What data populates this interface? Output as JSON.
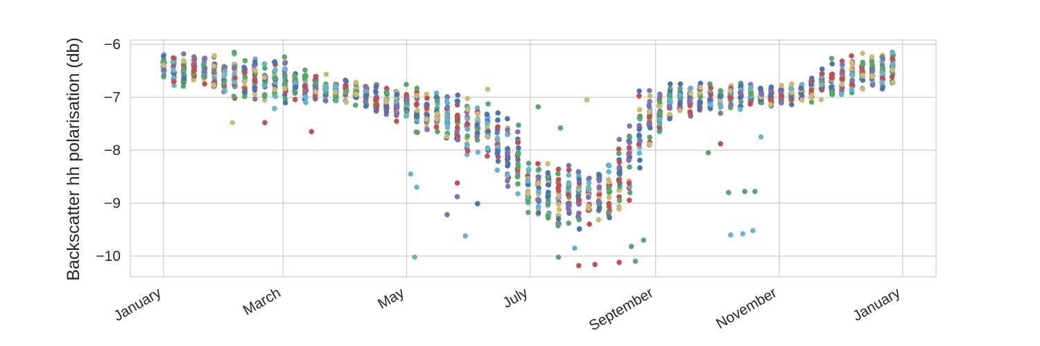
{
  "chart_data": {
    "type": "scatter",
    "title": "",
    "xlabel": "",
    "ylabel": "Backscatter hh polarisation (db)",
    "ylim": [
      -10.4,
      -5.95
    ],
    "grid": true,
    "legend": "none",
    "x_ticks": [
      {
        "label": "January",
        "day": 1
      },
      {
        "label": "March",
        "day": 60
      },
      {
        "label": "May",
        "day": 121
      },
      {
        "label": "July",
        "day": 182
      },
      {
        "label": "September",
        "day": 244
      },
      {
        "label": "November",
        "day": 305
      },
      {
        "label": "January",
        "day": 366
      }
    ],
    "y_ticks": [
      {
        "label": "−6",
        "value": -6
      },
      {
        "label": "−7",
        "value": -7
      },
      {
        "label": "−8",
        "value": -8
      },
      {
        "label": "−9",
        "value": -9
      },
      {
        "label": "−10",
        "value": -10
      }
    ],
    "series_colors": [
      "#4c72b0",
      "#55a868",
      "#c44e52",
      "#8172b2",
      "#ccb974",
      "#64b5cd"
    ],
    "profile": [
      {
        "day": 1,
        "mean": -6.45,
        "spread": 0.22
      },
      {
        "day": 20,
        "mean": -6.5,
        "spread": 0.25
      },
      {
        "day": 40,
        "mean": -6.65,
        "spread": 0.38
      },
      {
        "day": 60,
        "mean": -6.72,
        "spread": 0.35
      },
      {
        "day": 80,
        "mean": -6.85,
        "spread": 0.18
      },
      {
        "day": 100,
        "mean": -6.95,
        "spread": 0.18
      },
      {
        "day": 121,
        "mean": -7.15,
        "spread": 0.3
      },
      {
        "day": 140,
        "mean": -7.4,
        "spread": 0.45
      },
      {
        "day": 160,
        "mean": -7.6,
        "spread": 0.5
      },
      {
        "day": 175,
        "mean": -8.2,
        "spread": 0.6
      },
      {
        "day": 182,
        "mean": -8.75,
        "spread": 0.5
      },
      {
        "day": 200,
        "mean": -8.9,
        "spread": 0.55
      },
      {
        "day": 220,
        "mean": -8.85,
        "spread": 0.55
      },
      {
        "day": 235,
        "mean": -7.8,
        "spread": 0.6
      },
      {
        "day": 250,
        "mean": -7.1,
        "spread": 0.3
      },
      {
        "day": 270,
        "mean": -7.0,
        "spread": 0.25
      },
      {
        "day": 290,
        "mean": -6.95,
        "spread": 0.2
      },
      {
        "day": 305,
        "mean": -7.0,
        "spread": 0.15
      },
      {
        "day": 320,
        "mean": -6.85,
        "spread": 0.2
      },
      {
        "day": 340,
        "mean": -6.55,
        "spread": 0.3
      },
      {
        "day": 366,
        "mean": -6.45,
        "spread": 0.25
      }
    ],
    "points_per_date": 24,
    "date_step_days": 5,
    "first_day": 1,
    "last_day": 365,
    "y_floor": -10.15,
    "y_ceiling": -6.15,
    "outliers": [
      {
        "day": 125,
        "value": -10.02,
        "color": "#64b5cd"
      },
      {
        "day": 123,
        "value": -8.45,
        "color": "#64b5cd"
      },
      {
        "day": 126,
        "value": -8.7,
        "color": "#64b5cd"
      },
      {
        "day": 150,
        "value": -9.62,
        "color": "#64b5cd"
      },
      {
        "day": 141,
        "value": -9.22,
        "color": "#8172b2"
      },
      {
        "day": 156,
        "value": -9.01,
        "color": "#4c72b0"
      },
      {
        "day": 146,
        "value": -8.88,
        "color": "#8172b2"
      },
      {
        "day": 146,
        "value": -8.62,
        "color": "#c44e52"
      },
      {
        "day": 281,
        "value": -9.6,
        "color": "#64b5cd"
      },
      {
        "day": 287,
        "value": -9.58,
        "color": "#64b5cd"
      },
      {
        "day": 292,
        "value": -9.52,
        "color": "#64b5cd"
      },
      {
        "day": 280,
        "value": -8.8,
        "color": "#55a868"
      },
      {
        "day": 288,
        "value": -8.78,
        "color": "#55a868"
      },
      {
        "day": 293,
        "value": -8.78,
        "color": "#55a868"
      },
      {
        "day": 296,
        "value": -7.75,
        "color": "#64b5cd"
      },
      {
        "day": 206,
        "value": -10.18,
        "color": "#c44e52"
      },
      {
        "day": 214,
        "value": -10.16,
        "color": "#c44e52"
      },
      {
        "day": 226,
        "value": -10.12,
        "color": "#c44e52"
      },
      {
        "day": 234,
        "value": -10.1,
        "color": "#55a868"
      },
      {
        "day": 196,
        "value": -10.02,
        "color": "#55a868"
      },
      {
        "day": 204,
        "value": -9.85,
        "color": "#64b5cd"
      },
      {
        "day": 232,
        "value": -9.82,
        "color": "#55a868"
      },
      {
        "day": 238,
        "value": -9.7,
        "color": "#55a868"
      },
      {
        "day": 210,
        "value": -7.05,
        "color": "#ccb974"
      },
      {
        "day": 197,
        "value": -7.58,
        "color": "#55a868"
      },
      {
        "day": 186,
        "value": -7.18,
        "color": "#55a868"
      },
      {
        "day": 35,
        "value": -7.48,
        "color": "#ccb974"
      },
      {
        "day": 51,
        "value": -7.48,
        "color": "#c44e52"
      },
      {
        "day": 74,
        "value": -7.65,
        "color": "#c44e52"
      },
      {
        "day": 270,
        "value": -8.05,
        "color": "#55a868"
      },
      {
        "day": 276,
        "value": -7.88,
        "color": "#c44e52"
      }
    ]
  }
}
